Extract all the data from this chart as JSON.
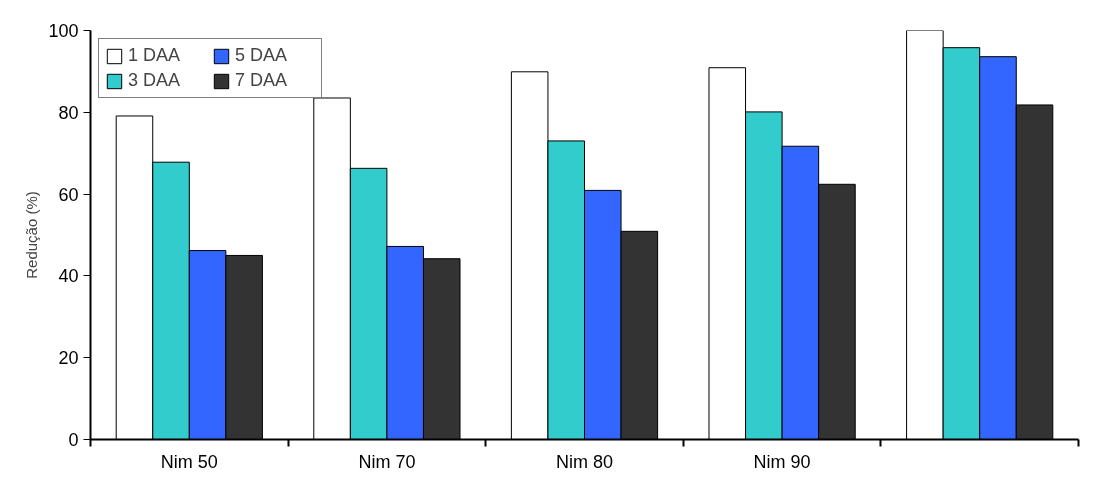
{
  "chart_data": {
    "type": "bar",
    "ylabel": "Redução (%)",
    "categories": [
      "Nim 50",
      "Nim 70",
      "Nim 80",
      "Nim 90",
      null
    ],
    "series": [
      {
        "name": "1 DAA",
        "color": "#ffffff",
        "values": [
          79.1,
          83.5,
          89.9,
          90.9,
          100
        ]
      },
      {
        "name": "3 DAA",
        "color": "#33cccc",
        "values": [
          67.8,
          66.3,
          73.0,
          80.1,
          95.8
        ]
      },
      {
        "name": "5 DAA",
        "color": "#3366ff",
        "values": [
          46.2,
          47.2,
          60.9,
          71.7,
          93.6
        ]
      },
      {
        "name": "7 DAA",
        "color": "#333333",
        "values": [
          45.0,
          44.2,
          50.9,
          62.4,
          81.8
        ]
      }
    ],
    "ylim": [
      0,
      100
    ],
    "yticks": [
      0,
      20,
      40,
      60,
      80,
      100
    ],
    "grid": false,
    "legend": "top left"
  }
}
